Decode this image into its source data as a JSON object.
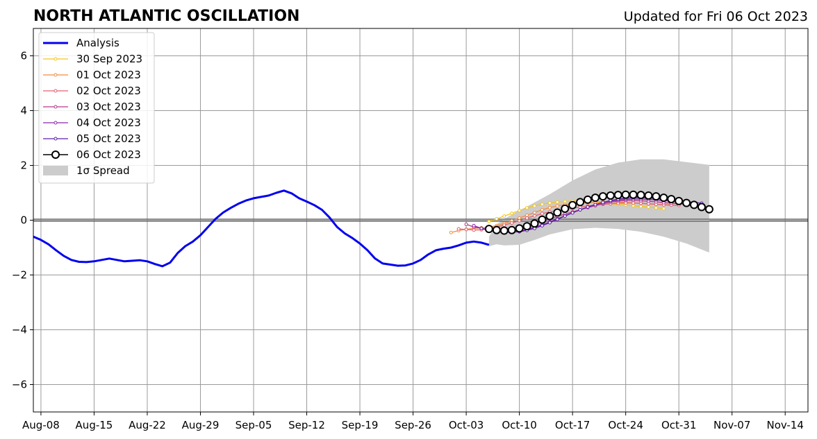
{
  "chart_data": {
    "type": "line",
    "title": "NORTH ATLANTIC OSCILLATION",
    "subtitle": "Updated for Fri 06 Oct 2023",
    "xlabel": "",
    "ylabel": "",
    "xlim": [
      "2023-08-07",
      "2023-11-17"
    ],
    "ylim": [
      -7,
      7
    ],
    "x_ticks": [
      "Aug-08",
      "Aug-15",
      "Aug-22",
      "Aug-29",
      "Sep-05",
      "Sep-12",
      "Sep-19",
      "Sep-26",
      "Oct-03",
      "Oct-10",
      "Oct-17",
      "Oct-24",
      "Oct-31",
      "Nov-07",
      "Nov-14"
    ],
    "x_tick_dates": [
      "2023-08-08",
      "2023-08-15",
      "2023-08-22",
      "2023-08-29",
      "2023-09-05",
      "2023-09-12",
      "2023-09-19",
      "2023-09-26",
      "2023-10-03",
      "2023-10-10",
      "2023-10-17",
      "2023-10-24",
      "2023-10-31",
      "2023-11-07",
      "2023-11-14"
    ],
    "y_ticks": [
      -6,
      -4,
      -2,
      0,
      2,
      4,
      6
    ],
    "y_tick_labels": [
      "−6",
      "−4",
      "−2",
      "0",
      "2",
      "4",
      "6"
    ],
    "grid": true,
    "legend_position": "top-left",
    "series": [
      {
        "name": "Analysis",
        "color": "#0000ee",
        "style": "analysis",
        "x": [
          "2023-08-07",
          "2023-08-08",
          "2023-08-09",
          "2023-08-10",
          "2023-08-11",
          "2023-08-12",
          "2023-08-13",
          "2023-08-14",
          "2023-08-15",
          "2023-08-16",
          "2023-08-17",
          "2023-08-18",
          "2023-08-19",
          "2023-08-20",
          "2023-08-21",
          "2023-08-22",
          "2023-08-23",
          "2023-08-24",
          "2023-08-25",
          "2023-08-26",
          "2023-08-27",
          "2023-08-28",
          "2023-08-29",
          "2023-08-30",
          "2023-08-31",
          "2023-09-01",
          "2023-09-02",
          "2023-09-03",
          "2023-09-04",
          "2023-09-05",
          "2023-09-06",
          "2023-09-07",
          "2023-09-08",
          "2023-09-09",
          "2023-09-10",
          "2023-09-11",
          "2023-09-12",
          "2023-09-13",
          "2023-09-14",
          "2023-09-15",
          "2023-09-16",
          "2023-09-17",
          "2023-09-18",
          "2023-09-19",
          "2023-09-20",
          "2023-09-21",
          "2023-09-22",
          "2023-09-23",
          "2023-09-24",
          "2023-09-25",
          "2023-09-26",
          "2023-09-27",
          "2023-09-28",
          "2023-09-29",
          "2023-09-30",
          "2023-10-01",
          "2023-10-02",
          "2023-10-03",
          "2023-10-04",
          "2023-10-05",
          "2023-10-06"
        ],
        "y": [
          -0.6,
          -0.72,
          -0.88,
          -1.1,
          -1.3,
          -1.45,
          -1.52,
          -1.53,
          -1.5,
          -1.45,
          -1.4,
          -1.45,
          -1.5,
          -1.48,
          -1.46,
          -1.5,
          -1.6,
          -1.68,
          -1.55,
          -1.2,
          -0.95,
          -0.78,
          -0.55,
          -0.25,
          0.05,
          0.28,
          0.45,
          0.6,
          0.72,
          0.8,
          0.85,
          0.9,
          1.0,
          1.08,
          0.98,
          0.8,
          0.68,
          0.55,
          0.38,
          0.1,
          -0.25,
          -0.48,
          -0.65,
          -0.85,
          -1.1,
          -1.4,
          -1.58,
          -1.62,
          -1.66,
          -1.65,
          -1.58,
          -1.45,
          -1.25,
          -1.1,
          -1.04,
          -1.0,
          -0.92,
          -0.82,
          -0.78,
          -0.82,
          -0.9
        ]
      },
      {
        "name": "30 Sep 2023",
        "color": "#f5c518",
        "style": "small",
        "x": [
          "2023-10-06",
          "2023-10-07",
          "2023-10-08",
          "2023-10-09",
          "2023-10-10",
          "2023-10-11",
          "2023-10-12",
          "2023-10-13",
          "2023-10-14",
          "2023-10-15",
          "2023-10-16",
          "2023-10-17",
          "2023-10-18",
          "2023-10-19",
          "2023-10-20",
          "2023-10-21",
          "2023-10-22",
          "2023-10-23",
          "2023-10-24",
          "2023-10-25",
          "2023-10-26",
          "2023-10-27",
          "2023-10-28",
          "2023-10-29"
        ],
        "y": [
          -0.05,
          0.05,
          0.15,
          0.25,
          0.35,
          0.45,
          0.52,
          0.58,
          0.63,
          0.66,
          0.68,
          0.7,
          0.7,
          0.68,
          0.65,
          0.62,
          0.6,
          0.58,
          0.56,
          0.53,
          0.5,
          0.48,
          0.45,
          0.42
        ]
      },
      {
        "name": "01 Oct 2023",
        "color": "#f28c3c",
        "style": "small",
        "x": [
          "2023-10-01",
          "2023-10-02",
          "2023-10-03",
          "2023-10-04",
          "2023-10-05",
          "2023-10-06",
          "2023-10-07",
          "2023-10-08",
          "2023-10-09",
          "2023-10-10",
          "2023-10-11",
          "2023-10-12",
          "2023-10-13",
          "2023-10-14",
          "2023-10-15",
          "2023-10-16",
          "2023-10-17",
          "2023-10-18",
          "2023-10-19",
          "2023-10-20",
          "2023-10-21",
          "2023-10-22",
          "2023-10-23",
          "2023-10-24",
          "2023-10-25",
          "2023-10-26",
          "2023-10-27",
          "2023-10-28",
          "2023-10-29",
          "2023-10-30"
        ],
        "y": [
          -0.45,
          -0.38,
          -0.33,
          -0.3,
          -0.28,
          -0.25,
          -0.2,
          -0.12,
          -0.02,
          0.08,
          0.18,
          0.28,
          0.38,
          0.46,
          0.52,
          0.57,
          0.6,
          0.62,
          0.64,
          0.66,
          0.67,
          0.67,
          0.66,
          0.65,
          0.63,
          0.61,
          0.6,
          0.58,
          0.57,
          0.56
        ]
      },
      {
        "name": "02 Oct 2023",
        "color": "#e0606e",
        "style": "small",
        "x": [
          "2023-10-02",
          "2023-10-03",
          "2023-10-04",
          "2023-10-05",
          "2023-10-06",
          "2023-10-07",
          "2023-10-08",
          "2023-10-09",
          "2023-10-10",
          "2023-10-11",
          "2023-10-12",
          "2023-10-13",
          "2023-10-14",
          "2023-10-15",
          "2023-10-16",
          "2023-10-17",
          "2023-10-18",
          "2023-10-19",
          "2023-10-20",
          "2023-10-21",
          "2023-10-22",
          "2023-10-23",
          "2023-10-24",
          "2023-10-25",
          "2023-10-26",
          "2023-10-27",
          "2023-10-28",
          "2023-10-29",
          "2023-10-30",
          "2023-10-31"
        ],
        "y": [
          -0.32,
          -0.34,
          -0.36,
          -0.35,
          -0.3,
          -0.25,
          -0.18,
          -0.1,
          -0.02,
          0.08,
          0.16,
          0.24,
          0.3,
          0.36,
          0.4,
          0.44,
          0.48,
          0.52,
          0.55,
          0.58,
          0.6,
          0.62,
          0.63,
          0.63,
          0.62,
          0.6,
          0.58,
          0.56,
          0.55,
          0.54
        ]
      },
      {
        "name": "03 Oct 2023",
        "color": "#b5388a",
        "style": "small",
        "x": [
          "2023-10-03",
          "2023-10-04",
          "2023-10-05",
          "2023-10-06",
          "2023-10-07",
          "2023-10-08",
          "2023-10-09",
          "2023-10-10",
          "2023-10-11",
          "2023-10-12",
          "2023-10-13",
          "2023-10-14",
          "2023-10-15",
          "2023-10-16",
          "2023-10-17",
          "2023-10-18",
          "2023-10-19",
          "2023-10-20",
          "2023-10-21",
          "2023-10-22",
          "2023-10-23",
          "2023-10-24",
          "2023-10-25",
          "2023-10-26",
          "2023-10-27",
          "2023-10-28",
          "2023-10-29",
          "2023-10-30",
          "2023-10-31",
          "2023-11-01"
        ],
        "y": [
          -0.15,
          -0.25,
          -0.3,
          -0.33,
          -0.35,
          -0.35,
          -0.33,
          -0.28,
          -0.2,
          -0.12,
          -0.04,
          0.05,
          0.14,
          0.22,
          0.3,
          0.38,
          0.46,
          0.53,
          0.6,
          0.66,
          0.7,
          0.72,
          0.72,
          0.71,
          0.69,
          0.67,
          0.64,
          0.62,
          0.6,
          0.58
        ]
      },
      {
        "name": "04 Oct 2023",
        "color": "#8e24aa",
        "style": "small",
        "x": [
          "2023-10-04",
          "2023-10-05",
          "2023-10-06",
          "2023-10-07",
          "2023-10-08",
          "2023-10-09",
          "2023-10-10",
          "2023-10-11",
          "2023-10-12",
          "2023-10-13",
          "2023-10-14",
          "2023-10-15",
          "2023-10-16",
          "2023-10-17",
          "2023-10-18",
          "2023-10-19",
          "2023-10-20",
          "2023-10-21",
          "2023-10-22",
          "2023-10-23",
          "2023-10-24",
          "2023-10-25",
          "2023-10-26",
          "2023-10-27",
          "2023-10-28",
          "2023-10-29",
          "2023-10-30",
          "2023-10-31",
          "2023-11-01",
          "2023-11-02"
        ],
        "y": [
          -0.2,
          -0.3,
          -0.38,
          -0.42,
          -0.44,
          -0.44,
          -0.4,
          -0.34,
          -0.26,
          -0.17,
          -0.06,
          0.05,
          0.16,
          0.27,
          0.38,
          0.48,
          0.57,
          0.64,
          0.7,
          0.74,
          0.76,
          0.77,
          0.77,
          0.76,
          0.74,
          0.72,
          0.7,
          0.68,
          0.66,
          0.64
        ]
      },
      {
        "name": "05 Oct 2023",
        "color": "#5b1fa6",
        "style": "small",
        "x": [
          "2023-10-05",
          "2023-10-06",
          "2023-10-07",
          "2023-10-08",
          "2023-10-09",
          "2023-10-10",
          "2023-10-11",
          "2023-10-12",
          "2023-10-13",
          "2023-10-14",
          "2023-10-15",
          "2023-10-16",
          "2023-10-17",
          "2023-10-18",
          "2023-10-19",
          "2023-10-20",
          "2023-10-21",
          "2023-10-22",
          "2023-10-23",
          "2023-10-24",
          "2023-10-25",
          "2023-10-26",
          "2023-10-27",
          "2023-10-28",
          "2023-10-29",
          "2023-10-30",
          "2023-10-31",
          "2023-11-01",
          "2023-11-02",
          "2023-11-03"
        ],
        "y": [
          -0.3,
          -0.36,
          -0.4,
          -0.43,
          -0.44,
          -0.42,
          -0.37,
          -0.3,
          -0.2,
          -0.09,
          0.03,
          0.15,
          0.27,
          0.38,
          0.48,
          0.57,
          0.65,
          0.72,
          0.77,
          0.8,
          0.82,
          0.82,
          0.81,
          0.79,
          0.77,
          0.74,
          0.71,
          0.68,
          0.65,
          0.62
        ]
      },
      {
        "name": "06 Oct 2023",
        "color": "#000000",
        "style": "current",
        "x": [
          "2023-10-06",
          "2023-10-07",
          "2023-10-08",
          "2023-10-09",
          "2023-10-10",
          "2023-10-11",
          "2023-10-12",
          "2023-10-13",
          "2023-10-14",
          "2023-10-15",
          "2023-10-16",
          "2023-10-17",
          "2023-10-18",
          "2023-10-19",
          "2023-10-20",
          "2023-10-21",
          "2023-10-22",
          "2023-10-23",
          "2023-10-24",
          "2023-10-25",
          "2023-10-26",
          "2023-10-27",
          "2023-10-28",
          "2023-10-29",
          "2023-10-30",
          "2023-10-31",
          "2023-11-01",
          "2023-11-02",
          "2023-11-03",
          "2023-11-04"
        ],
        "y": [
          -0.32,
          -0.36,
          -0.38,
          -0.36,
          -0.3,
          -0.22,
          -0.12,
          0.02,
          0.15,
          0.28,
          0.42,
          0.55,
          0.66,
          0.75,
          0.82,
          0.87,
          0.9,
          0.92,
          0.93,
          0.93,
          0.92,
          0.9,
          0.87,
          0.82,
          0.77,
          0.7,
          0.63,
          0.56,
          0.48,
          0.4
        ]
      }
    ],
    "spread": {
      "name": "1σ Spread",
      "color": "#cccccc",
      "x": [
        "2023-10-06",
        "2023-10-07",
        "2023-10-08",
        "2023-10-10",
        "2023-10-12",
        "2023-10-14",
        "2023-10-17",
        "2023-10-20",
        "2023-10-23",
        "2023-10-26",
        "2023-10-29",
        "2023-11-01",
        "2023-11-04"
      ],
      "upper": [
        -0.6,
        -0.15,
        0.05,
        0.35,
        0.65,
        0.95,
        1.45,
        1.85,
        2.1,
        2.22,
        2.22,
        2.12,
        2.02
      ],
      "lower": [
        -0.95,
        -0.88,
        -0.92,
        -0.9,
        -0.72,
        -0.52,
        -0.33,
        -0.28,
        -0.32,
        -0.42,
        -0.6,
        -0.85,
        -1.18
      ]
    }
  }
}
